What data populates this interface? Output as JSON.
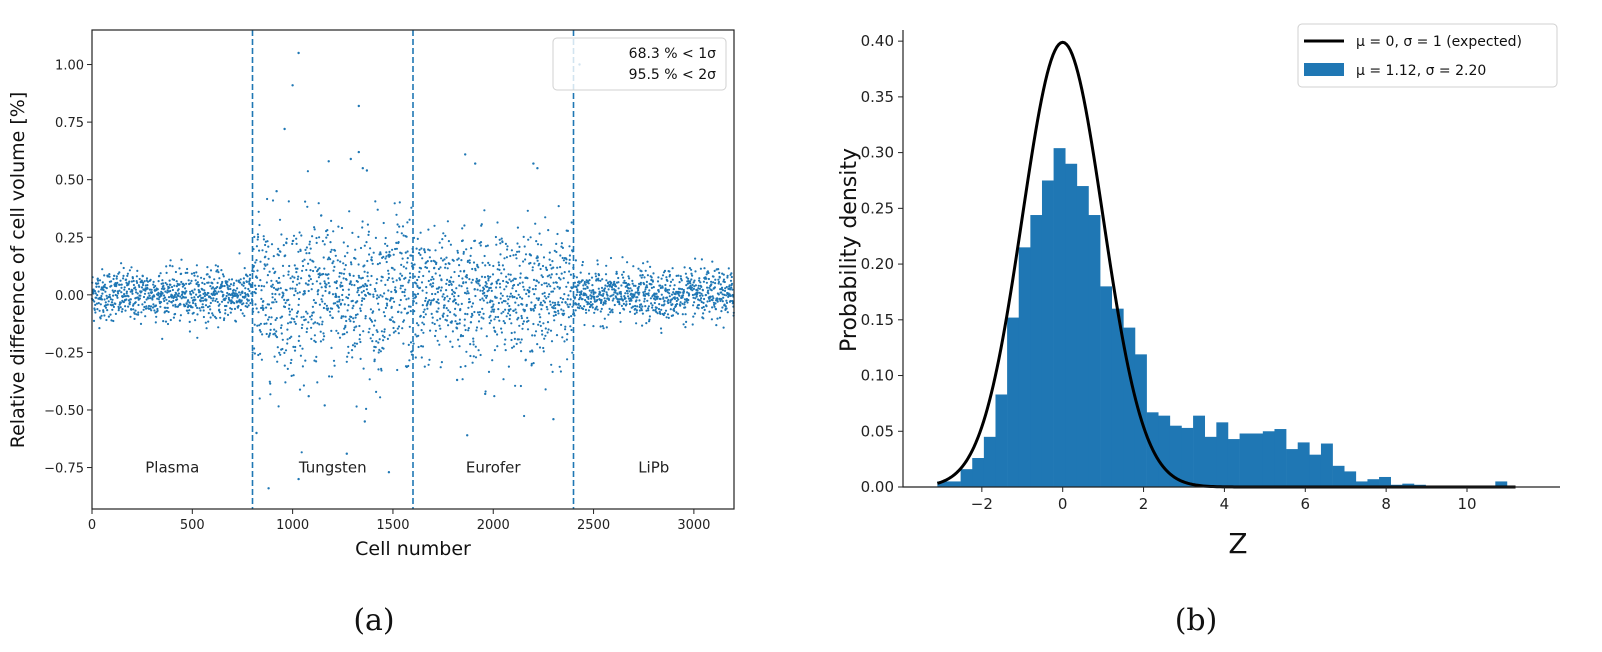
{
  "figure": {
    "subfigure_a_label": "(a)",
    "subfigure_b_label": "(b)"
  },
  "colors": {
    "series_blue": "#1f77b4",
    "expected_curve": "#000000",
    "axis": "#222222"
  },
  "chart_data": [
    {
      "type": "scatter",
      "id": "a",
      "title": "",
      "xlabel": "Cell number",
      "ylabel": "Relative difference of cell volume [%]",
      "xlim": [
        0,
        3200
      ],
      "ylim": [
        -0.93,
        1.15
      ],
      "xticks": [
        0,
        500,
        1000,
        1500,
        2000,
        2500,
        3000
      ],
      "xtick_labels": [
        "0",
        "500",
        "1000",
        "1500",
        "2000",
        "2500",
        "3000"
      ],
      "yticks": [
        -0.75,
        -0.5,
        -0.25,
        0.0,
        0.25,
        0.5,
        0.75,
        1.0
      ],
      "ytick_labels": [
        "−0.75",
        "−0.50",
        "−0.25",
        "0.00",
        "0.25",
        "0.50",
        "0.75",
        "1.00"
      ],
      "grid": false,
      "region_boundaries": [
        800,
        1600,
        2400
      ],
      "regions": [
        {
          "name": "Plasma",
          "x_range": [
            0,
            800
          ],
          "label_x": 400,
          "mean": 0.0,
          "std": 0.055
        },
        {
          "name": "Tungsten",
          "x_range": [
            800,
            1600
          ],
          "label_x": 1200,
          "mean": 0.0,
          "std": 0.17
        },
        {
          "name": "Eurofer",
          "x_range": [
            1600,
            2400
          ],
          "label_x": 2000,
          "mean": 0.0,
          "std": 0.14
        },
        {
          "name": "LiPb",
          "x_range": [
            2400,
            3200
          ],
          "label_x": 2800,
          "mean": 0.0,
          "std": 0.055
        }
      ],
      "region_label_y": -0.75,
      "outliers": [
        {
          "x": 1030,
          "y": 1.05
        },
        {
          "x": 1000,
          "y": 0.91
        },
        {
          "x": 960,
          "y": 0.72
        },
        {
          "x": 1330,
          "y": 0.82
        },
        {
          "x": 1330,
          "y": 0.62
        },
        {
          "x": 1290,
          "y": 0.59
        },
        {
          "x": 1350,
          "y": 0.55
        },
        {
          "x": 1370,
          "y": 0.54
        },
        {
          "x": 1180,
          "y": 0.58
        },
        {
          "x": 920,
          "y": 0.45
        },
        {
          "x": 1860,
          "y": 0.61
        },
        {
          "x": 1910,
          "y": 0.57
        },
        {
          "x": 2200,
          "y": 0.57
        },
        {
          "x": 2220,
          "y": 0.55
        },
        {
          "x": 2430,
          "y": 1.0
        },
        {
          "x": 1030,
          "y": -0.8
        },
        {
          "x": 880,
          "y": -0.84
        },
        {
          "x": 1480,
          "y": -0.77
        },
        {
          "x": 1270,
          "y": -0.69
        },
        {
          "x": 1870,
          "y": -0.61
        },
        {
          "x": 1960,
          "y": -0.43
        },
        {
          "x": 2300,
          "y": -0.54
        },
        {
          "x": 820,
          "y": -0.6
        },
        {
          "x": 1360,
          "y": -0.55
        },
        {
          "x": 1160,
          "y": -0.48
        },
        {
          "x": 1080,
          "y": -0.44
        },
        {
          "x": 1820,
          "y": -0.37
        }
      ],
      "legend": {
        "position": "upper right",
        "entries": [
          "68.3 % < 1σ",
          "95.5 % < 2σ"
        ]
      }
    },
    {
      "type": "bar",
      "subtype": "histogram_with_curve",
      "id": "b",
      "title": "",
      "xlabel": "Z",
      "ylabel": "Probability density",
      "xlim": [
        -3.95,
        12.3
      ],
      "ylim": [
        0.0,
        0.41
      ],
      "xticks": [
        -2,
        0,
        2,
        4,
        6,
        8,
        10
      ],
      "xtick_labels": [
        "−2",
        "0",
        "2",
        "4",
        "6",
        "8",
        "10"
      ],
      "yticks": [
        0.0,
        0.05,
        0.1,
        0.15,
        0.2,
        0.25,
        0.3,
        0.35,
        0.4
      ],
      "ytick_labels": [
        "0.00",
        "0.05",
        "0.10",
        "0.15",
        "0.20",
        "0.25",
        "0.30",
        "0.35",
        "0.40"
      ],
      "grid": false,
      "bin_start": -3.1,
      "bin_width": 0.2875,
      "density": [
        0.005,
        0.005,
        0.016,
        0.026,
        0.045,
        0.083,
        0.152,
        0.215,
        0.244,
        0.275,
        0.304,
        0.29,
        0.27,
        0.244,
        0.18,
        0.16,
        0.143,
        0.119,
        0.067,
        0.064,
        0.055,
        0.053,
        0.064,
        0.045,
        0.058,
        0.043,
        0.048,
        0.048,
        0.05,
        0.052,
        0.034,
        0.04,
        0.029,
        0.039,
        0.019,
        0.014,
        0.005,
        0.007,
        0.009,
        0.002,
        0.003,
        0.002,
        0.0,
        0.001,
        0.001,
        0.001,
        0.0,
        0.0,
        0.005
      ],
      "expected_curve": {
        "mu": 0,
        "sigma": 1,
        "x_range": [
          -3.1,
          11.2
        ]
      },
      "legend": {
        "position": "upper right",
        "entries": [
          {
            "label": "μ = 0, σ = 1 (expected)",
            "style": "line"
          },
          {
            "label": "μ = 1.12, σ = 2.20",
            "style": "patch"
          }
        ]
      }
    }
  ]
}
